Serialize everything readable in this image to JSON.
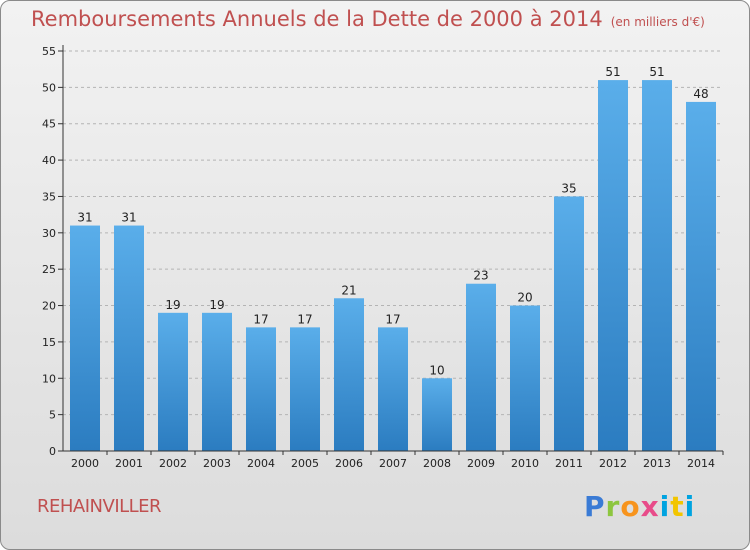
{
  "chart_data": {
    "type": "bar",
    "title": "Remboursements Annuels de la Dette de 2000 à 2014",
    "unit_note": "(en milliers d'€)",
    "categories": [
      "2000",
      "2001",
      "2002",
      "2003",
      "2004",
      "2005",
      "2006",
      "2007",
      "2008",
      "2009",
      "2010",
      "2011",
      "2012",
      "2013",
      "2014"
    ],
    "values": [
      31,
      31,
      19,
      19,
      17,
      17,
      21,
      17,
      10,
      23,
      20,
      35,
      51,
      51,
      48
    ],
    "ylim": [
      0,
      55
    ],
    "yticks": [
      0,
      5,
      10,
      15,
      20,
      25,
      30,
      35,
      40,
      45,
      50,
      55
    ],
    "xlabel": "",
    "ylabel": "",
    "bar_color": "#4a9fe0"
  },
  "commune": "REHAINVILLER",
  "brand": {
    "letters": [
      "P",
      "r",
      "o",
      "x",
      "i",
      "t",
      "i"
    ]
  }
}
